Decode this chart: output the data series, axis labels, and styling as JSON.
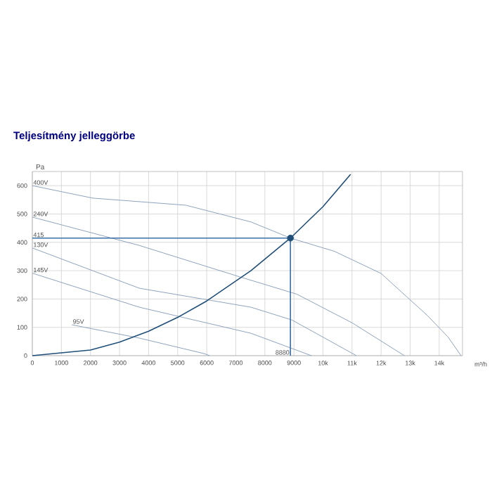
{
  "chart_data": {
    "type": "line",
    "title": "Teljesítmény jelleggörbe",
    "xlabel": "m³/h",
    "ylabel": "Pa",
    "xlim": [
      0,
      14800
    ],
    "ylim": [
      0,
      650
    ],
    "xticks": [
      0,
      1000,
      2000,
      3000,
      4000,
      5000,
      6000,
      7000,
      8000,
      9000,
      {
        "value": 10000,
        "label": "10k"
      },
      {
        "value": 11000,
        "label": "11k"
      },
      {
        "value": 12000,
        "label": "12k"
      },
      {
        "value": 13000,
        "label": "13k"
      },
      {
        "value": 14000,
        "label": "14k"
      }
    ],
    "yticks": [
      0,
      100,
      200,
      300,
      400,
      500,
      600
    ],
    "grid": true,
    "series": [
      {
        "name": "400V",
        "color": "#8fa3bd",
        "x": [
          0,
          2080,
          5280,
          7520,
          8880,
          10400,
          12000,
          13600,
          14300,
          14750
        ],
        "values": [
          600,
          556,
          531,
          472,
          415,
          368,
          290,
          141,
          66,
          0
        ]
      },
      {
        "name": "240V",
        "color": "#8fa3bd",
        "x": [
          0,
          3680,
          7140,
          9100,
          11000,
          12800
        ],
        "values": [
          489,
          389,
          278,
          217,
          116,
          0
        ]
      },
      {
        "name": "130V",
        "color": "#8fa3bd",
        "x": [
          0,
          3680,
          7520,
          8930,
          11150
        ],
        "values": [
          380,
          238,
          171,
          126,
          0
        ]
      },
      {
        "name": "145V",
        "color": "#8fa3bd",
        "x": [
          0,
          3680,
          7520,
          9600
        ],
        "values": [
          291,
          171,
          79,
          0
        ]
      },
      {
        "name": "95V",
        "color": "#8fa3bd",
        "x": [
          1360,
          3680,
          5920,
          6100
        ],
        "values": [
          109,
          62,
          7,
          0
        ]
      },
      {
        "type": "line",
        "color": "#1f4e79",
        "x": [
          0,
          2000,
          3000,
          4000,
          5000,
          6000,
          7520,
          8880,
          10000,
          10950
        ],
        "values": [
          0,
          20,
          48,
          86,
          135,
          193,
          300,
          415,
          526,
          640
        ]
      },
      {
        "type": "line",
        "color": "#3a6fa8",
        "x": [
          0,
          8880,
          8880
        ],
        "values": [
          415,
          415,
          0
        ]
      },
      {
        "type": "scatter",
        "marker": "circle",
        "color": "#1f4e79",
        "x": [
          8880
        ],
        "values": [
          415
        ]
      }
    ],
    "annotations": [
      {
        "text": "415",
        "x": 0,
        "y": 415
      },
      {
        "text": "8880",
        "x": 8880,
        "y": 0
      }
    ]
  }
}
